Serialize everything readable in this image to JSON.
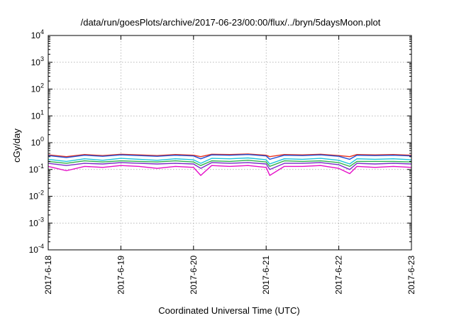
{
  "chart_data": {
    "type": "line",
    "title": "/data/run/goesPlots/archive/2017-06-23/00:00/flux/../bryn/5daysMoon.plot",
    "xlabel": "Coordinated Universal Time (UTC)",
    "ylabel": "cGy/day",
    "yscale": "log",
    "ylim": [
      0.0001,
      10000
    ],
    "xlim": [
      0,
      5
    ],
    "grid": true,
    "legend": "none",
    "x_ticks": [
      {
        "value": 0,
        "label": "2017-6-18"
      },
      {
        "value": 1,
        "label": "2017-6-19"
      },
      {
        "value": 2,
        "label": "2017-6-20"
      },
      {
        "value": 3,
        "label": "2017-6-21"
      },
      {
        "value": 4,
        "label": "2017-6-22"
      },
      {
        "value": 5,
        "label": "2017-6-23"
      }
    ],
    "y_ticks": [
      {
        "exp": -4,
        "value": 0.0001
      },
      {
        "exp": -3,
        "value": 0.001
      },
      {
        "exp": -2,
        "value": 0.01
      },
      {
        "exp": -1,
        "value": 0.1
      },
      {
        "exp": 0,
        "value": 1
      },
      {
        "exp": 1,
        "value": 10
      },
      {
        "exp": 2,
        "value": 100
      },
      {
        "exp": 3,
        "value": 1000
      },
      {
        "exp": 4,
        "value": 10000
      }
    ],
    "x": [
      0,
      0.25,
      0.5,
      0.75,
      1,
      1.25,
      1.5,
      1.75,
      2,
      2.1,
      2.25,
      2.5,
      2.75,
      3,
      3.05,
      3.25,
      3.5,
      3.75,
      4,
      4.15,
      4.25,
      4.5,
      4.75,
      5
    ],
    "series": [
      {
        "color": "#e8301c",
        "values": [
          0.35,
          0.3,
          0.36,
          0.33,
          0.37,
          0.35,
          0.33,
          0.36,
          0.34,
          0.3,
          0.37,
          0.36,
          0.38,
          0.34,
          0.3,
          0.36,
          0.35,
          0.37,
          0.33,
          0.3,
          0.36,
          0.35,
          0.36,
          0.34
        ]
      },
      {
        "color": "#1f4fd6",
        "values": [
          0.33,
          0.28,
          0.34,
          0.31,
          0.35,
          0.33,
          0.31,
          0.34,
          0.32,
          0.25,
          0.35,
          0.34,
          0.36,
          0.32,
          0.24,
          0.34,
          0.33,
          0.35,
          0.31,
          0.24,
          0.34,
          0.33,
          0.34,
          0.32
        ]
      },
      {
        "color": "#1ec6dc",
        "values": [
          0.24,
          0.2,
          0.25,
          0.22,
          0.26,
          0.24,
          0.22,
          0.25,
          0.23,
          0.17,
          0.26,
          0.25,
          0.27,
          0.23,
          0.16,
          0.25,
          0.24,
          0.26,
          0.22,
          0.16,
          0.25,
          0.24,
          0.25,
          0.23
        ]
      },
      {
        "color": "#2fb34a",
        "values": [
          0.2,
          0.17,
          0.21,
          0.19,
          0.21,
          0.2,
          0.19,
          0.21,
          0.19,
          0.14,
          0.21,
          0.2,
          0.22,
          0.19,
          0.13,
          0.21,
          0.2,
          0.21,
          0.18,
          0.13,
          0.2,
          0.2,
          0.2,
          0.19
        ]
      },
      {
        "color": "#7a2bc8",
        "values": [
          0.17,
          0.14,
          0.17,
          0.16,
          0.18,
          0.17,
          0.16,
          0.17,
          0.16,
          0.11,
          0.18,
          0.17,
          0.18,
          0.16,
          0.1,
          0.17,
          0.17,
          0.18,
          0.15,
          0.1,
          0.17,
          0.16,
          0.17,
          0.16
        ]
      },
      {
        "color": "#e60ec8",
        "values": [
          0.13,
          0.09,
          0.13,
          0.12,
          0.14,
          0.13,
          0.11,
          0.13,
          0.12,
          0.06,
          0.14,
          0.13,
          0.14,
          0.12,
          0.06,
          0.13,
          0.13,
          0.14,
          0.11,
          0.07,
          0.13,
          0.12,
          0.13,
          0.12
        ]
      }
    ]
  }
}
